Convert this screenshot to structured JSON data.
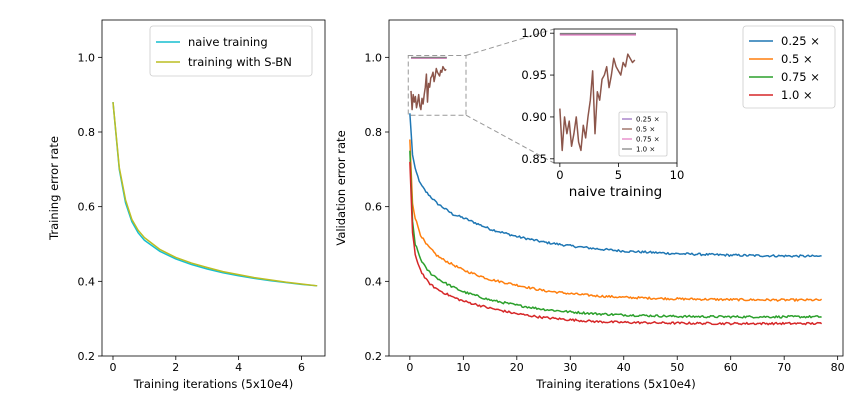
{
  "chart_data": [
    {
      "type": "line",
      "xlabel": "Training iterations (5x10e4)",
      "ylabel": "Training error rate",
      "xlim": [
        -0.35,
        6.75
      ],
      "ylim": [
        0.2,
        1.1
      ],
      "xticks": [
        0,
        2,
        4,
        6
      ],
      "yticks": [
        0.2,
        0.4,
        0.6,
        0.8,
        1.0
      ],
      "xtick_labels": [
        "0",
        "2",
        "4",
        "6"
      ],
      "ytick_labels": [
        "0.2",
        "0.4",
        "0.6",
        "0.8",
        "1.0"
      ],
      "grid": false,
      "legend_position": "top-right",
      "series": [
        {
          "name": "naive training",
          "color": "#17becf",
          "x": [
            0,
            0.2,
            0.4,
            0.6,
            0.8,
            1.0,
            1.5,
            2.0,
            2.5,
            3.0,
            3.5,
            4.0,
            4.5,
            5.0,
            5.5,
            6.0,
            6.5
          ],
          "y": [
            0.88,
            0.7,
            0.61,
            0.56,
            0.53,
            0.51,
            0.48,
            0.46,
            0.445,
            0.433,
            0.423,
            0.415,
            0.408,
            0.402,
            0.397,
            0.392,
            0.388
          ]
        },
        {
          "name": "training with S-BN",
          "color": "#bcbd22",
          "x": [
            0,
            0.2,
            0.4,
            0.6,
            0.8,
            1.0,
            1.5,
            2.0,
            2.5,
            3.0,
            3.5,
            4.0,
            4.5,
            5.0,
            5.5,
            6.0,
            6.5
          ],
          "y": [
            0.88,
            0.705,
            0.618,
            0.566,
            0.537,
            0.517,
            0.485,
            0.464,
            0.449,
            0.437,
            0.426,
            0.418,
            0.41,
            0.404,
            0.398,
            0.393,
            0.388
          ]
        }
      ]
    },
    {
      "type": "line",
      "xlabel": "Training iterations (5x10e4)",
      "ylabel": "Validation error rate",
      "xlim": [
        -3.9,
        81
      ],
      "ylim": [
        0.2,
        1.1
      ],
      "xticks": [
        0,
        10,
        20,
        30,
        40,
        50,
        60,
        70,
        80
      ],
      "yticks": [
        0.2,
        0.4,
        0.6,
        0.8,
        1.0
      ],
      "xtick_labels": [
        "0",
        "10",
        "20",
        "30",
        "40",
        "50",
        "60",
        "70",
        "80"
      ],
      "ytick_labels": [
        "0.2",
        "0.4",
        "0.6",
        "0.8",
        "1.0"
      ],
      "grid": false,
      "legend_position": "top-right",
      "series": [
        {
          "name": "0.25 ×",
          "color": "#1f77b4",
          "x": [
            0,
            0.5,
            1,
            2,
            3,
            4,
            5,
            6,
            8,
            10,
            15,
            20,
            25,
            30,
            35,
            40,
            50,
            60,
            70,
            77
          ],
          "y": [
            0.85,
            0.74,
            0.7,
            0.66,
            0.64,
            0.625,
            0.61,
            0.6,
            0.58,
            0.57,
            0.54,
            0.52,
            0.505,
            0.495,
            0.487,
            0.481,
            0.474,
            0.47,
            0.468,
            0.467
          ]
        },
        {
          "name": "0.5 ×",
          "color": "#ff7f0e",
          "x": [
            0,
            0.5,
            1,
            2,
            3,
            4,
            5,
            6,
            8,
            10,
            15,
            20,
            25,
            30,
            35,
            40,
            50,
            60,
            70,
            77
          ],
          "y": [
            0.78,
            0.61,
            0.57,
            0.525,
            0.5,
            0.485,
            0.47,
            0.46,
            0.445,
            0.43,
            0.405,
            0.39,
            0.375,
            0.367,
            0.361,
            0.357,
            0.353,
            0.351,
            0.35,
            0.35
          ]
        },
        {
          "name": "0.75 ×",
          "color": "#2ca02c",
          "x": [
            0,
            0.5,
            1,
            2,
            3,
            4,
            5,
            6,
            8,
            10,
            15,
            20,
            25,
            30,
            35,
            40,
            50,
            60,
            70,
            77
          ],
          "y": [
            0.75,
            0.56,
            0.5,
            0.46,
            0.435,
            0.42,
            0.41,
            0.4,
            0.385,
            0.372,
            0.35,
            0.336,
            0.325,
            0.318,
            0.313,
            0.31,
            0.306,
            0.305,
            0.305,
            0.305
          ]
        },
        {
          "name": "1.0 ×",
          "color": "#d62728",
          "x": [
            0,
            0.5,
            1,
            2,
            3,
            4,
            5,
            6,
            8,
            10,
            15,
            20,
            25,
            30,
            35,
            40,
            50,
            60,
            70,
            77
          ],
          "y": [
            0.72,
            0.53,
            0.47,
            0.43,
            0.405,
            0.39,
            0.38,
            0.372,
            0.358,
            0.347,
            0.328,
            0.313,
            0.303,
            0.297,
            0.292,
            0.29,
            0.288,
            0.287,
            0.287,
            0.287
          ]
        }
      ]
    },
    {
      "type": "line",
      "xlabel": "naive training",
      "ylabel": "",
      "xlim": [
        -0.5,
        10
      ],
      "ylim": [
        0.845,
        1.005
      ],
      "xticks": [
        0,
        5,
        10
      ],
      "yticks": [
        0.85,
        0.9,
        0.95,
        1.0
      ],
      "xtick_labels": [
        "0",
        "5",
        "10"
      ],
      "ytick_labels": [
        "0.85",
        "0.90",
        "0.95",
        "1.00"
      ],
      "grid": false,
      "legend_position": "bottom-right",
      "series": [
        {
          "name": "0.25 ×",
          "color": "#9467bd",
          "x": [
            0,
            6.5
          ],
          "y": [
            0.999,
            0.999
          ]
        },
        {
          "name": "0.5 ×",
          "color": "#8c564b",
          "x": [
            0,
            0.2,
            0.4,
            0.6,
            0.8,
            1.0,
            1.2,
            1.4,
            1.6,
            1.8,
            2.0,
            2.2,
            2.4,
            2.6,
            2.8,
            3.0,
            3.2,
            3.4,
            3.6,
            3.8,
            4.0,
            4.2,
            4.4,
            4.6,
            4.8,
            5.0,
            5.2,
            5.4,
            5.6,
            5.8,
            6.0,
            6.2,
            6.4
          ],
          "y": [
            0.91,
            0.86,
            0.9,
            0.88,
            0.895,
            0.865,
            0.88,
            0.9,
            0.87,
            0.86,
            0.89,
            0.875,
            0.9,
            0.92,
            0.955,
            0.88,
            0.93,
            0.92,
            0.945,
            0.95,
            0.96,
            0.935,
            0.95,
            0.97,
            0.96,
            0.955,
            0.95,
            0.965,
            0.96,
            0.975,
            0.97,
            0.965,
            0.968
          ]
        },
        {
          "name": "0.75 ×",
          "color": "#e377c2",
          "x": [
            0,
            6.5
          ],
          "y": [
            0.998,
            0.998
          ]
        },
        {
          "name": "1.0 ×",
          "color": "#7f7f7f",
          "x": [
            0,
            6.5
          ],
          "y": [
            0.9995,
            0.9995
          ]
        }
      ]
    }
  ]
}
